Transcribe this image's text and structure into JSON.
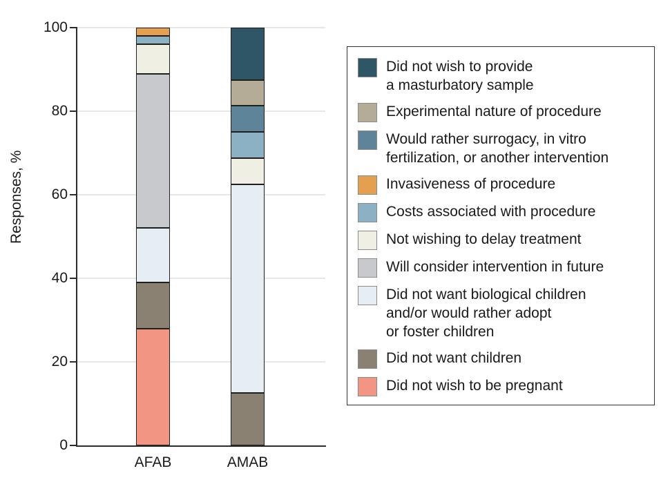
{
  "figure": {
    "background": "#ffffff",
    "text_color": "#1a1a1a",
    "axis_color": "#2b2b2b",
    "gridline_color": "#e7e7e7",
    "segment_border_color": "#1f1f1f"
  },
  "chart_data": {
    "type": "bar",
    "stacked": true,
    "percent_scale": true,
    "title": "",
    "xlabel": "",
    "ylabel": "Responses, %",
    "ylim": [
      0,
      100
    ],
    "yticks": [
      0,
      20,
      40,
      60,
      80,
      100
    ],
    "grid": "horizontal",
    "legend_position": "right",
    "categories": [
      "AFAB",
      "AMAB"
    ],
    "series": [
      {
        "name": "Did not wish to be pregnant",
        "color": "#F29583",
        "values": [
          28,
          0
        ]
      },
      {
        "name": "Did not want children",
        "color": "#8A8173",
        "values": [
          11,
          12.5
        ]
      },
      {
        "name": "Did not want biological children and/or would rather adopt or foster children",
        "color": "#E6EEF3",
        "values": [
          13,
          50
        ]
      },
      {
        "name": "Will consider intervention in future",
        "color": "#C7C9CC",
        "values": [
          37,
          0
        ]
      },
      {
        "name": "Not wishing to delay treatment",
        "color": "#F0EFE4",
        "values": [
          7,
          6.25
        ]
      },
      {
        "name": "Costs associated with procedure",
        "color": "#8DB1C4",
        "values": [
          2,
          6.25
        ]
      },
      {
        "name": "Would rather surrogacy, in vitro fertilization, or another intervention",
        "color": "#5E8499",
        "values": [
          0,
          6.25
        ]
      },
      {
        "name": "Invasiveness of procedure",
        "color": "#E4A04F",
        "values": [
          2,
          0
        ]
      },
      {
        "name": "Experimental nature of procedure",
        "color": "#B5AC97",
        "values": [
          0,
          6.25
        ]
      },
      {
        "name": "Did not wish to provide a masturbatory sample",
        "color": "#2E5666",
        "values": [
          0,
          12.5
        ]
      }
    ]
  },
  "legend": {
    "items": [
      {
        "lines": [
          "Did not wish to provide",
          "a masturbatory sample"
        ],
        "color": "#2E5666"
      },
      {
        "lines": [
          "Experimental nature of procedure"
        ],
        "color": "#B5AC97"
      },
      {
        "lines": [
          "Would rather surrogacy, in vitro",
          "fertilization, or another intervention"
        ],
        "color": "#5E8499"
      },
      {
        "lines": [
          "Invasiveness of procedure"
        ],
        "color": "#E4A04F"
      },
      {
        "lines": [
          "Costs associated with procedure"
        ],
        "color": "#8DB1C4"
      },
      {
        "lines": [
          "Not wishing to delay treatment"
        ],
        "color": "#F0EFE4"
      },
      {
        "lines": [
          "Will consider intervention in future"
        ],
        "color": "#C7C9CC"
      },
      {
        "lines": [
          "Did not want biological children",
          "and/or would rather adopt",
          "or foster children"
        ],
        "color": "#E6EEF3"
      },
      {
        "lines": [
          "Did not want children"
        ],
        "color": "#8A8173"
      },
      {
        "lines": [
          "Did not wish to be pregnant"
        ],
        "color": "#F29583"
      }
    ]
  }
}
